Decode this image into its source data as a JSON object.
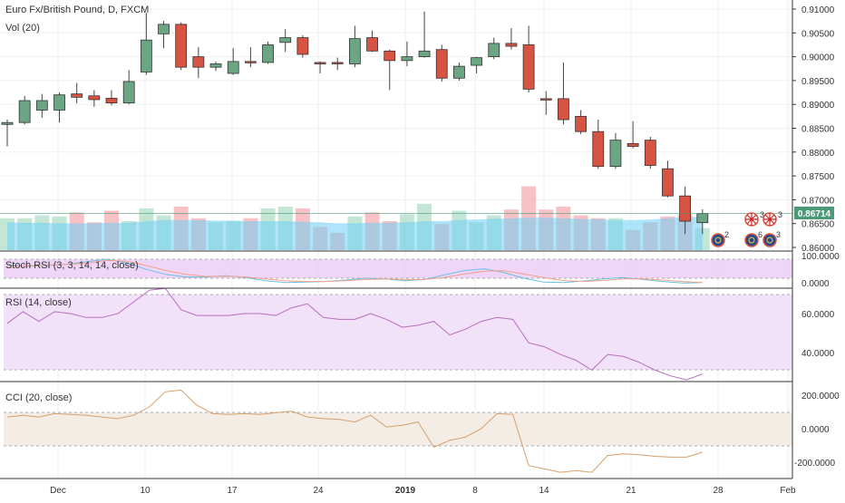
{
  "chart_data": {
    "type": "candlestick",
    "title": "Euro Fx/British Pound, D, FXCM",
    "volume_label": "Vol (20)",
    "last_price": "0.86714",
    "price_ticks": [
      "0.91000",
      "0.90500",
      "0.90000",
      "0.89500",
      "0.89000",
      "0.88500",
      "0.88000",
      "0.87500",
      "0.87000",
      "0.86500",
      "0.86000"
    ],
    "x_ticks": [
      "Dec",
      "10",
      "17",
      "24",
      "2019",
      "8",
      "14",
      "21",
      "28",
      "Feb"
    ],
    "colors": {
      "up": "#6ba583",
      "down": "#d75442",
      "volume_up": "#a9dcc3",
      "volume_down": "#f5a6ae",
      "volume_ma": "#6ecff6",
      "price_line": "#4a9a78",
      "stoch_k": "#69bfe0",
      "stoch_d": "#f3a08a",
      "rsi": "#b76ebd",
      "cci": "#d5a06b"
    },
    "candles": [
      {
        "o": 0.8858,
        "h": 0.8868,
        "l": 0.8812,
        "c": 0.8862
      },
      {
        "o": 0.8862,
        "h": 0.8918,
        "l": 0.8858,
        "c": 0.8908
      },
      {
        "o": 0.8888,
        "h": 0.8922,
        "l": 0.8872,
        "c": 0.8908
      },
      {
        "o": 0.8888,
        "h": 0.8925,
        "l": 0.8862,
        "c": 0.892
      },
      {
        "o": 0.8922,
        "h": 0.8945,
        "l": 0.8902,
        "c": 0.8915
      },
      {
        "o": 0.8918,
        "h": 0.893,
        "l": 0.8895,
        "c": 0.891
      },
      {
        "o": 0.8913,
        "h": 0.893,
        "l": 0.8898,
        "c": 0.8903
      },
      {
        "o": 0.8903,
        "h": 0.8972,
        "l": 0.89,
        "c": 0.8948
      },
      {
        "o": 0.8968,
        "h": 0.9092,
        "l": 0.8962,
        "c": 0.9035
      },
      {
        "o": 0.9048,
        "h": 0.9075,
        "l": 0.9018,
        "c": 0.9068
      },
      {
        "o": 0.9068,
        "h": 0.9072,
        "l": 0.8972,
        "c": 0.8978
      },
      {
        "o": 0.9,
        "h": 0.902,
        "l": 0.8955,
        "c": 0.8978
      },
      {
        "o": 0.8978,
        "h": 0.899,
        "l": 0.897,
        "c": 0.8985
      },
      {
        "o": 0.8965,
        "h": 0.9018,
        "l": 0.8962,
        "c": 0.899
      },
      {
        "o": 0.899,
        "h": 0.902,
        "l": 0.8978,
        "c": 0.8988
      },
      {
        "o": 0.8988,
        "h": 0.9032,
        "l": 0.8985,
        "c": 0.9025
      },
      {
        "o": 0.903,
        "h": 0.9058,
        "l": 0.901,
        "c": 0.904
      },
      {
        "o": 0.904,
        "h": 0.9045,
        "l": 0.8998,
        "c": 0.9005
      },
      {
        "o": 0.8988,
        "h": 0.899,
        "l": 0.8965,
        "c": 0.8985
      },
      {
        "o": 0.8988,
        "h": 0.8998,
        "l": 0.8972,
        "c": 0.8985
      },
      {
        "o": 0.8985,
        "h": 0.9065,
        "l": 0.8978,
        "c": 0.9038
      },
      {
        "o": 0.904,
        "h": 0.9055,
        "l": 0.901,
        "c": 0.9012
      },
      {
        "o": 0.9012,
        "h": 0.9015,
        "l": 0.893,
        "c": 0.8992
      },
      {
        "o": 0.8992,
        "h": 0.9032,
        "l": 0.898,
        "c": 0.9
      },
      {
        "o": 0.9,
        "h": 0.9095,
        "l": 0.8998,
        "c": 0.9012
      },
      {
        "o": 0.9015,
        "h": 0.9025,
        "l": 0.8948,
        "c": 0.8955
      },
      {
        "o": 0.8955,
        "h": 0.8988,
        "l": 0.895,
        "c": 0.898
      },
      {
        "o": 0.8982,
        "h": 0.9,
        "l": 0.8965,
        "c": 0.8998
      },
      {
        "o": 0.9,
        "h": 0.904,
        "l": 0.8995,
        "c": 0.9028
      },
      {
        "o": 0.9028,
        "h": 0.906,
        "l": 0.9015,
        "c": 0.9022
      },
      {
        "o": 0.9025,
        "h": 0.9065,
        "l": 0.8925,
        "c": 0.8932
      },
      {
        "o": 0.8912,
        "h": 0.8928,
        "l": 0.8878,
        "c": 0.891
      },
      {
        "o": 0.8912,
        "h": 0.8988,
        "l": 0.8858,
        "c": 0.8868
      },
      {
        "o": 0.8875,
        "h": 0.8888,
        "l": 0.8838,
        "c": 0.8843
      },
      {
        "o": 0.8843,
        "h": 0.8868,
        "l": 0.8765,
        "c": 0.877
      },
      {
        "o": 0.877,
        "h": 0.884,
        "l": 0.8765,
        "c": 0.8825
      },
      {
        "o": 0.8818,
        "h": 0.8865,
        "l": 0.8808,
        "c": 0.8812
      },
      {
        "o": 0.8825,
        "h": 0.8832,
        "l": 0.8765,
        "c": 0.8772
      },
      {
        "o": 0.8765,
        "h": 0.8782,
        "l": 0.8705,
        "c": 0.8708
      },
      {
        "o": 0.8708,
        "h": 0.8728,
        "l": 0.8628,
        "c": 0.8655
      },
      {
        "o": 0.8652,
        "h": 0.868,
        "l": 0.8628,
        "c": 0.8671
      }
    ],
    "volume_ma": [
      0.48,
      0.47,
      0.47,
      0.46,
      0.46,
      0.46,
      0.47,
      0.47,
      0.5,
      0.52,
      0.52,
      0.52,
      0.51,
      0.51,
      0.5,
      0.5,
      0.5,
      0.49,
      0.48,
      0.46,
      0.46,
      0.47,
      0.47,
      0.48,
      0.5,
      0.5,
      0.52,
      0.53,
      0.54,
      0.55,
      0.56,
      0.56,
      0.55,
      0.54,
      0.53,
      0.52,
      0.52,
      0.53,
      0.55,
      0.57,
      0.57
    ],
    "volumes": [
      0.55,
      0.55,
      0.6,
      0.58,
      0.65,
      0.48,
      0.68,
      0.5,
      0.72,
      0.6,
      0.75,
      0.55,
      0.48,
      0.5,
      0.55,
      0.72,
      0.75,
      0.72,
      0.4,
      0.3,
      0.58,
      0.65,
      0.5,
      0.62,
      0.8,
      0.45,
      0.68,
      0.48,
      0.6,
      0.7,
      1.1,
      0.7,
      0.75,
      0.6,
      0.55,
      0.55,
      0.35,
      0.48,
      0.58,
      0.62,
      0.38
    ],
    "stoch_rsi": {
      "title": "Stoch RSI (3, 3, 14, 14, close)",
      "ticks": [
        "100.0000",
        "0.0000"
      ],
      "k": [
        78,
        72,
        75,
        80,
        90,
        100,
        86,
        60,
        40,
        30,
        30,
        35,
        28,
        15,
        8,
        10,
        12,
        18,
        25,
        22,
        15,
        20,
        38,
        55,
        62,
        48,
        25,
        10,
        8,
        14,
        22,
        28,
        20,
        12,
        6,
        8
      ],
      "d": [
        70,
        74,
        76,
        80,
        84,
        95,
        92,
        75,
        55,
        40,
        32,
        33,
        30,
        22,
        15,
        12,
        12,
        15,
        20,
        22,
        20,
        20,
        28,
        42,
        52,
        55,
        42,
        28,
        16,
        12,
        16,
        22,
        22,
        18,
        12,
        8
      ]
    },
    "rsi": {
      "title": "RSI (14, close)",
      "ticks": [
        "60.0000",
        "40.0000"
      ],
      "values": [
        55,
        61,
        56,
        61,
        60,
        58,
        58,
        60,
        66,
        72,
        73,
        62,
        59,
        59,
        59,
        60,
        60,
        59,
        63,
        65,
        58,
        57,
        57,
        60,
        57,
        53,
        54,
        56,
        49,
        52,
        56,
        58,
        57,
        45,
        43,
        39,
        36,
        31,
        39,
        38,
        35,
        31,
        28,
        26,
        29
      ]
    },
    "cci": {
      "title": "CCI (20, close)",
      "ticks": [
        "200.0000",
        "0.0000",
        "-200.0000"
      ],
      "values": [
        70,
        80,
        70,
        90,
        85,
        80,
        70,
        60,
        80,
        130,
        220,
        230,
        140,
        90,
        85,
        90,
        85,
        95,
        105,
        70,
        60,
        55,
        40,
        80,
        10,
        20,
        40,
        -110,
        -70,
        -50,
        0,
        90,
        85,
        -220,
        -240,
        -260,
        -250,
        -260,
        -160,
        -150,
        -155,
        -165,
        -170,
        -170,
        -140
      ]
    }
  }
}
